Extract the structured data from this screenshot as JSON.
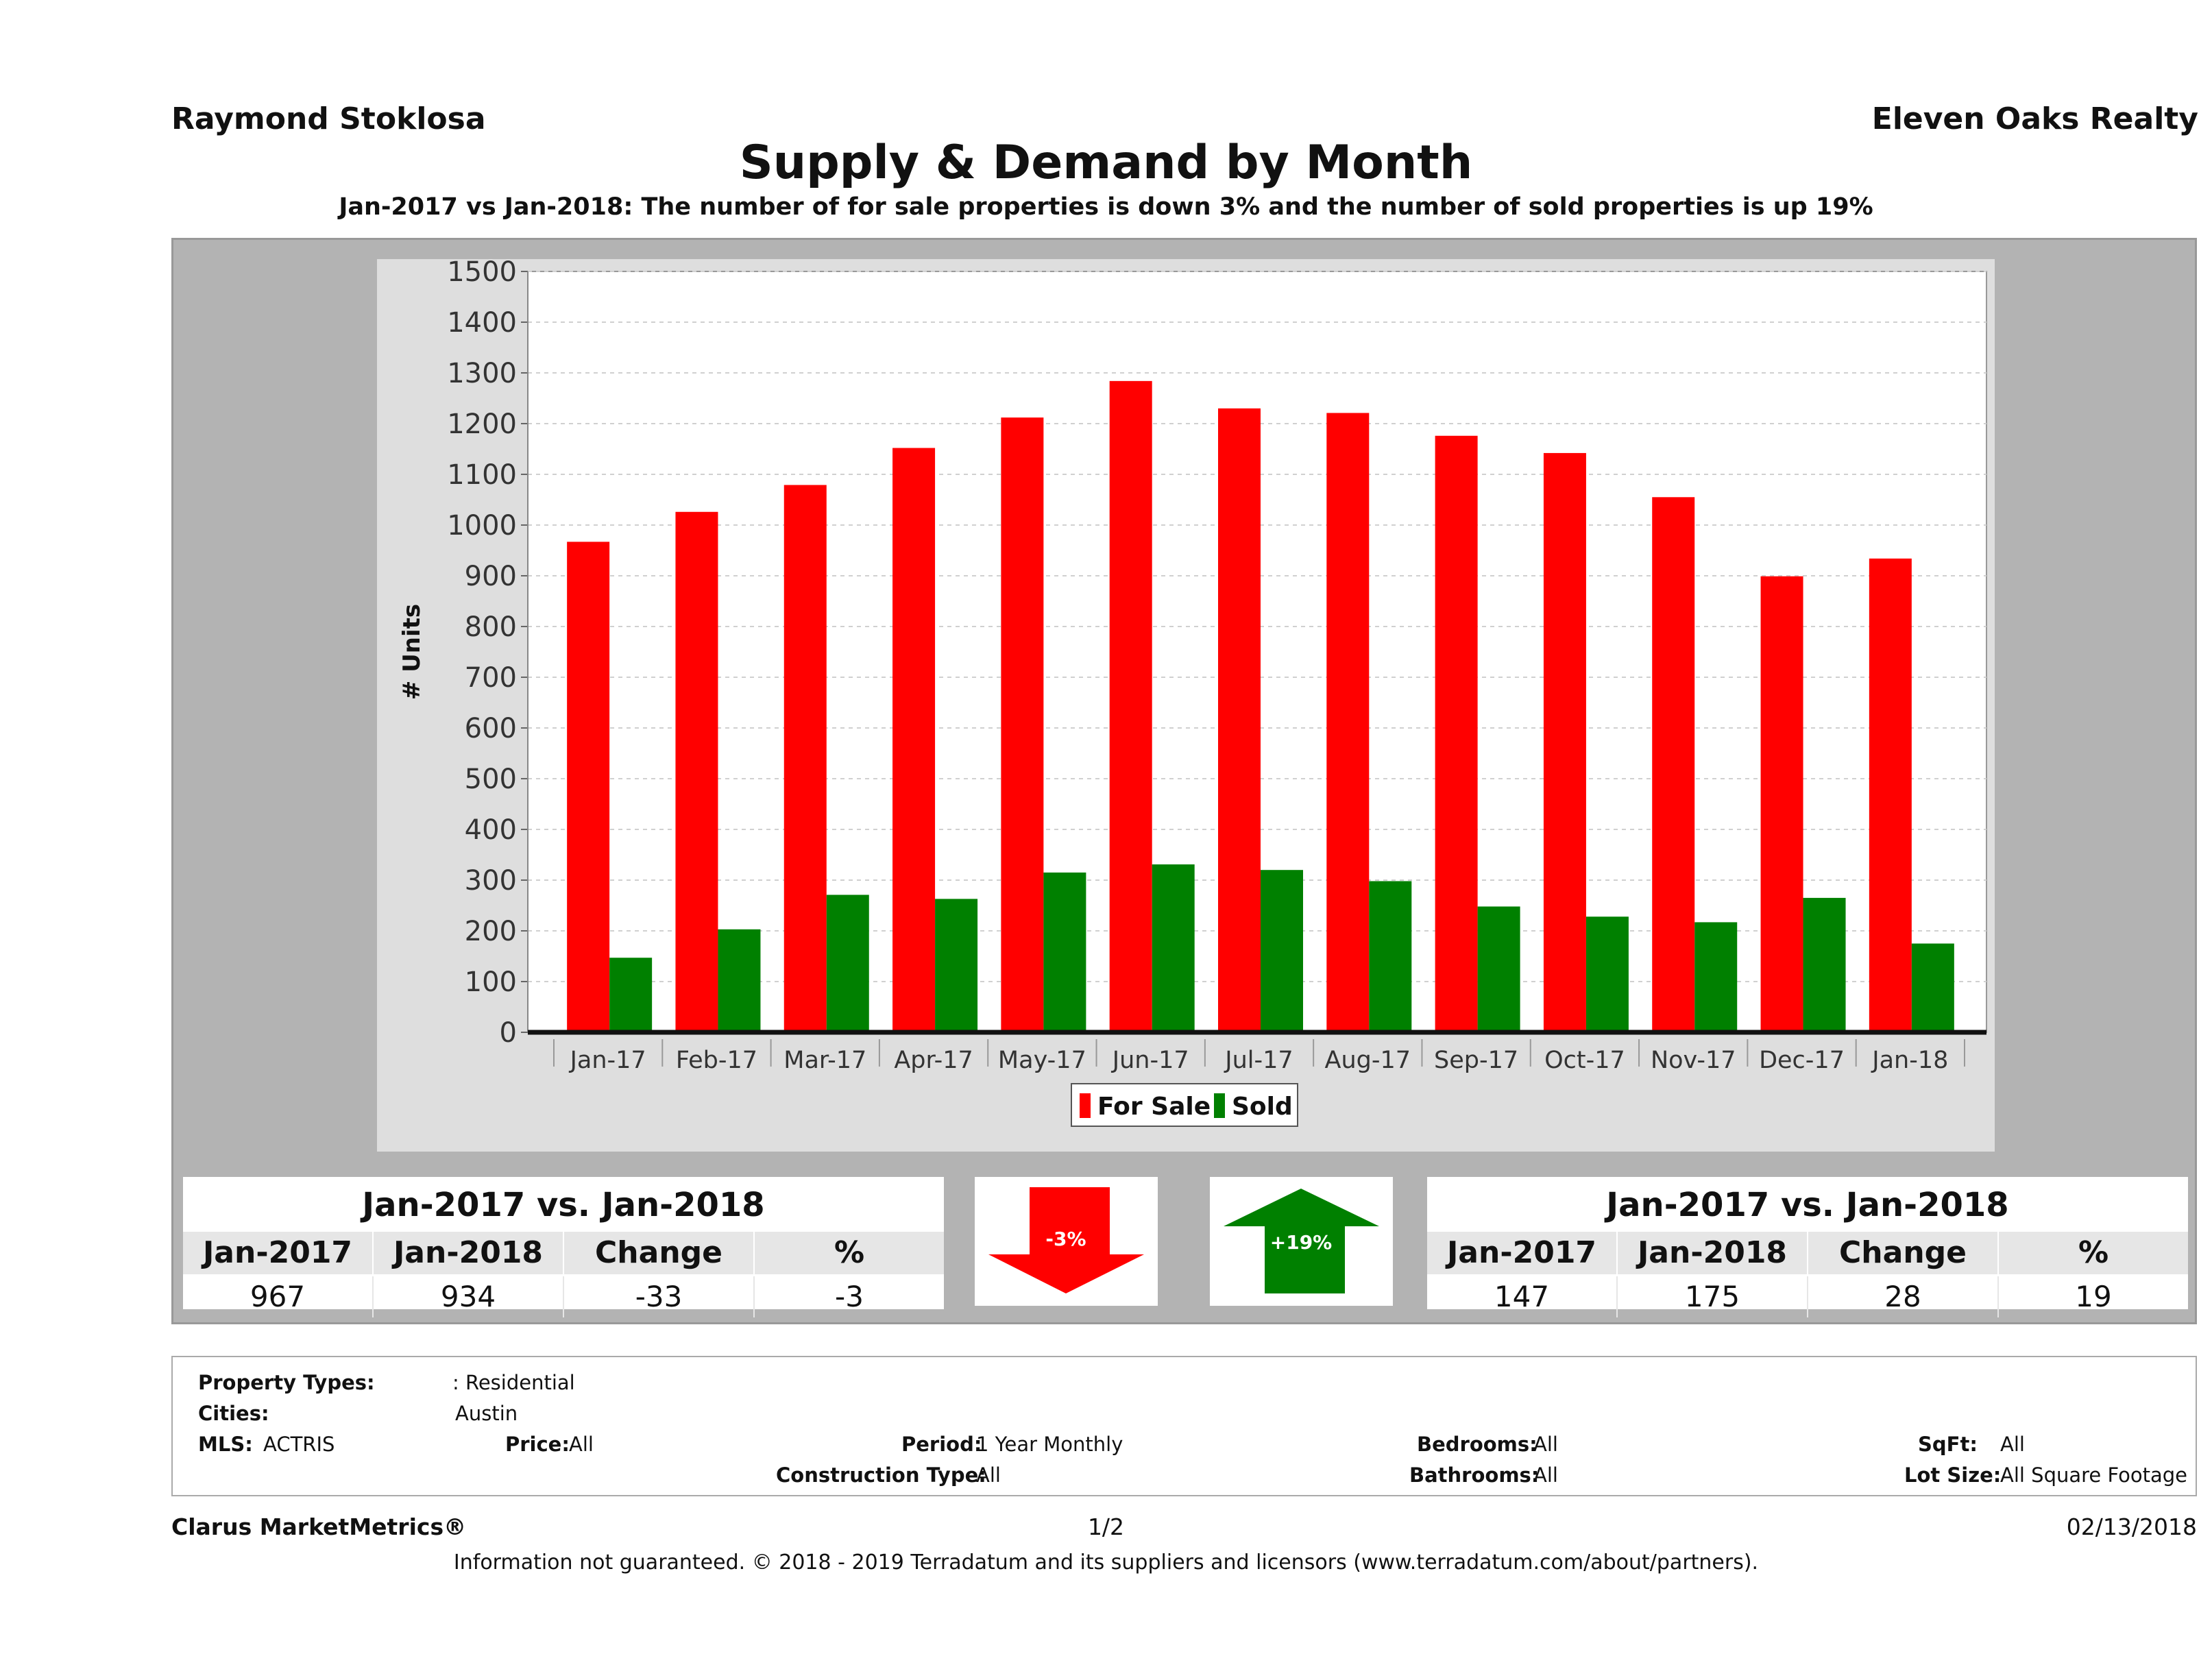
{
  "header": {
    "agent": "Raymond Stoklosa",
    "company": "Eleven Oaks Realty",
    "title": "Supply & Demand by Month",
    "subtitle": "Jan-2017 vs Jan-2018: The number of for sale properties is down 3% and the number of sold properties is up 19%"
  },
  "chart_data": {
    "type": "bar",
    "categories": [
      "Jan-17",
      "Feb-17",
      "Mar-17",
      "Apr-17",
      "May-17",
      "Jun-17",
      "Jul-17",
      "Aug-17",
      "Sep-17",
      "Oct-17",
      "Nov-17",
      "Dec-17",
      "Jan-18"
    ],
    "series": [
      {
        "name": "For Sale",
        "color": "#ff0000",
        "values": [
          967,
          1026,
          1079,
          1152,
          1212,
          1284,
          1230,
          1221,
          1176,
          1142,
          1055,
          899,
          934
        ]
      },
      {
        "name": "Sold",
        "color": "#008000",
        "values": [
          147,
          203,
          271,
          263,
          315,
          331,
          320,
          298,
          248,
          228,
          217,
          265,
          175
        ]
      }
    ],
    "ylabel": "# Units",
    "xlabel": "",
    "ylim": [
      0,
      1500
    ],
    "yticks": [
      0,
      100,
      200,
      300,
      400,
      500,
      600,
      700,
      800,
      900,
      1000,
      1100,
      1200,
      1300,
      1400,
      1500
    ],
    "grid": true,
    "legend_position": "bottom-center"
  },
  "stats_left": {
    "title": "Jan-2017 vs. Jan-2018",
    "headers": [
      "Jan-2017",
      "Jan-2018",
      "Change",
      "%"
    ],
    "values": [
      "967",
      "934",
      "-33",
      "-3"
    ]
  },
  "arrow_down": {
    "label": "-3%",
    "color": "#ff0000"
  },
  "arrow_up": {
    "label": "+19%",
    "color": "#008000"
  },
  "stats_right": {
    "title": "Jan-2017 vs. Jan-2018",
    "headers": [
      "Jan-2017",
      "Jan-2018",
      "Change",
      "%"
    ],
    "values": [
      "147",
      "175",
      "28",
      "19"
    ]
  },
  "criteria": {
    "property_types_label": "Property Types:",
    "property_types_value": ": Residential",
    "cities_label": "Cities:",
    "cities_value": "Austin",
    "mls_label": "MLS:",
    "mls_value": "ACTRIS",
    "price_label": "Price:",
    "price_value": "All",
    "period_label": "Period:",
    "period_value": "1 Year Monthly",
    "construction_label": "Construction Type:",
    "construction_value": "All",
    "bedrooms_label": "Bedrooms:",
    "bedrooms_value": "All",
    "bathrooms_label": "Bathrooms:",
    "bathrooms_value": "All",
    "sqft_label": "SqFt:",
    "sqft_value": "All",
    "lotsize_label": "Lot Size:",
    "lotsize_value": "All Square Footage"
  },
  "footer": {
    "brand": "Clarus MarketMetrics®",
    "page": "1/2",
    "date": "02/13/2018",
    "disclaimer": "Information not guaranteed. © 2018 - 2019 Terradatum and its suppliers and licensors (www.terradatum.com/about/partners)."
  }
}
